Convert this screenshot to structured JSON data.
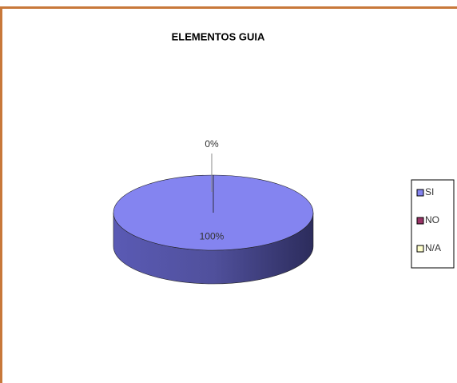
{
  "chart_data": {
    "type": "pie",
    "title": "ELEMENTOS GUIA",
    "categories": [
      "SI",
      "NO",
      "N/A"
    ],
    "values": [
      100,
      0,
      0
    ],
    "value_labels": [
      "100%",
      "0%",
      null
    ],
    "colors": [
      "#8484f0",
      "#993366",
      "#ffffcc"
    ],
    "legend": "right"
  }
}
